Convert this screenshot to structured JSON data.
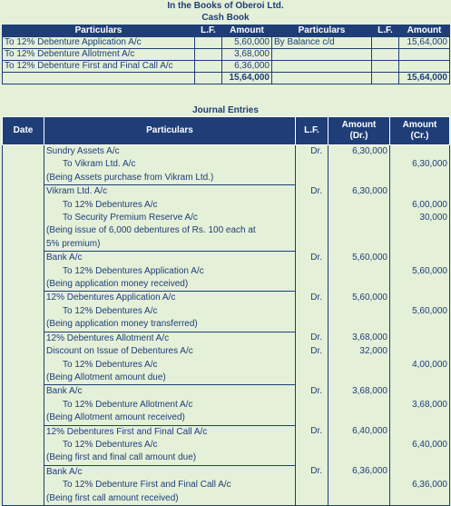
{
  "header": {
    "company": "In the Books of Oberoi Ltd.",
    "book": "Cash Book"
  },
  "cash_book": {
    "columns": [
      "Particulars",
      "L.F.",
      "Amount",
      "Particulars",
      "L.F.",
      "Amount"
    ],
    "debit_rows": [
      {
        "particulars": "To 12% Debenture Application A/c",
        "amount": "5,60,000"
      },
      {
        "particulars": "To 12% Debenture Allotment A/c",
        "amount": "3,68,000"
      },
      {
        "particulars": "To 12% Debenture First and Final Call  A/c",
        "amount": "6,36,000"
      }
    ],
    "credit_rows": [
      {
        "particulars": "By Balance c/d",
        "amount": "15,64,000"
      }
    ],
    "debit_total": "15,64,000",
    "credit_total": "15,64,000"
  },
  "journal": {
    "title": "Journal Entries",
    "columns": {
      "date": "Date",
      "particulars": "Particulars",
      "lf": "L.F.",
      "amount_dr": "Amount\n(Dr.)",
      "amount_cr": "Amount\n(Cr.)"
    },
    "entries": [
      {
        "lines": [
          {
            "text": "Sundry Assets A/c",
            "dr": "Dr.",
            "debit": "6,30,000",
            "credit": "",
            "indent": false
          },
          {
            "text": "To Vikram Ltd. A/c",
            "dr": "",
            "debit": "",
            "credit": "6,30,000",
            "indent": true
          },
          {
            "text": "(Being Assets purchase from Vikram Ltd.)",
            "dr": "",
            "debit": "",
            "credit": "",
            "indent": false
          }
        ]
      },
      {
        "lines": [
          {
            "text": "Vikram Ltd. A/c",
            "dr": "Dr.",
            "debit": "6,30,000",
            "credit": "",
            "indent": false
          },
          {
            "text": "To 12% Debentures A/c",
            "dr": "",
            "debit": "",
            "credit": "6,00,000",
            "indent": true
          },
          {
            "text": "To Security Premium Reserve A/c",
            "dr": "",
            "debit": "",
            "credit": "30,000",
            "indent": true
          },
          {
            "text": "(Being issue of 6,000 debentures of Rs. 100 each at",
            "dr": "",
            "debit": "",
            "credit": "",
            "indent": false
          },
          {
            "text": "5% premium)",
            "dr": "",
            "debit": "",
            "credit": "",
            "indent": false
          }
        ]
      },
      {
        "lines": [
          {
            "text": "Bank A/c",
            "dr": "Dr.",
            "debit": "5,60,000",
            "credit": "",
            "indent": false
          },
          {
            "text": "To 12% Debentures Application A/c",
            "dr": "",
            "debit": "",
            "credit": "5,60,000",
            "indent": true
          },
          {
            "text": "(Being application money received)",
            "dr": "",
            "debit": "",
            "credit": "",
            "indent": false
          }
        ]
      },
      {
        "lines": [
          {
            "text": "12% Debentures Application A/c",
            "dr": "Dr.",
            "debit": "5,60,000",
            "credit": "",
            "indent": false
          },
          {
            "text": "To 12% Debentures A/c",
            "dr": "",
            "debit": "",
            "credit": "5,60,000",
            "indent": true
          },
          {
            "text": "(Being application money transferred)",
            "dr": "",
            "debit": "",
            "credit": "",
            "indent": false
          }
        ]
      },
      {
        "lines": [
          {
            "text": "12% Debentures Allotment A/c",
            "dr": "Dr.",
            "debit": "3,68,000",
            "credit": "",
            "indent": false
          },
          {
            "text": "Discount on Issue of Debentures A/c",
            "dr": "Dr.",
            "debit": "32,000",
            "credit": "",
            "indent": false
          },
          {
            "text": "To 12% Debentures A/c",
            "dr": "",
            "debit": "",
            "credit": "4,00,000",
            "indent": true
          },
          {
            "text": "(Being Allotment amount due)",
            "dr": "",
            "debit": "",
            "credit": "",
            "indent": false
          }
        ]
      },
      {
        "lines": [
          {
            "text": "Bank A/c",
            "dr": "Dr.",
            "debit": "3,68,000",
            "credit": "",
            "indent": false
          },
          {
            "text": "To 12% Debenture Allotment A/c",
            "dr": "",
            "debit": "",
            "credit": "3,68,000",
            "indent": true
          },
          {
            "text": "(Being Allotment amount received)",
            "dr": "",
            "debit": "",
            "credit": "",
            "indent": false
          }
        ]
      },
      {
        "lines": [
          {
            "text": "12% Debentures First and Final Call A/c",
            "dr": "Dr.",
            "debit": "6,40,000",
            "credit": "",
            "indent": false
          },
          {
            "text": "To 12% Debentures A/c",
            "dr": "",
            "debit": "",
            "credit": "6,40,000",
            "indent": true
          },
          {
            "text": "(Being first and final call amount due)",
            "dr": "",
            "debit": "",
            "credit": "",
            "indent": false
          }
        ]
      },
      {
        "lines": [
          {
            "text": "Bank A/c",
            "dr": "Dr.",
            "debit": "6,36,000",
            "credit": "",
            "indent": false
          },
          {
            "text": "To 12% Debenture First and Final  Call A/c",
            "dr": "",
            "debit": "",
            "credit": "6,36,000",
            "indent": true
          },
          {
            "text": "(Being first call amount received)",
            "dr": "",
            "debit": "",
            "credit": "",
            "indent": false
          }
        ]
      }
    ]
  }
}
